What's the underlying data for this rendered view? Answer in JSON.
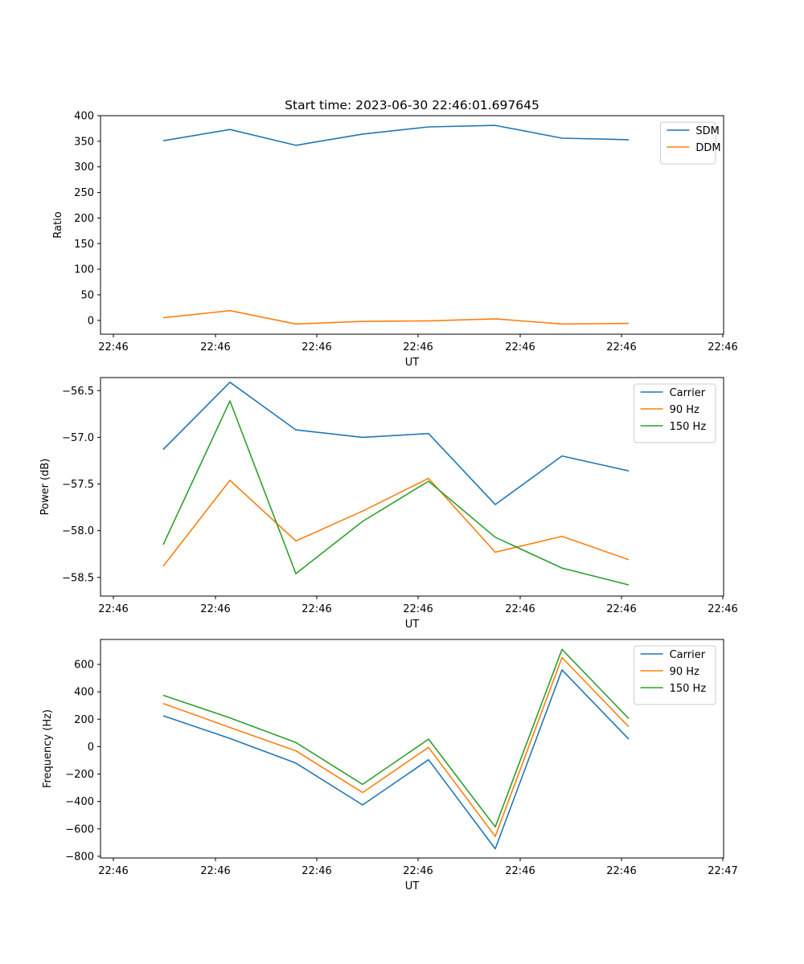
{
  "chart_data": [
    {
      "type": "line",
      "title": "Start time: 2023-06-30 22:46:01.697645",
      "xlabel": "UT",
      "ylabel": "Ratio",
      "x_ticks": [
        "22:46",
        "22:46",
        "22:46",
        "22:46",
        "22:46",
        "22:46",
        "22:46"
      ],
      "ylim": [
        -27,
        400
      ],
      "y_ticks": [
        0,
        50,
        100,
        150,
        200,
        250,
        300,
        350,
        400
      ],
      "legend": "top-right",
      "series": [
        {
          "name": "SDM",
          "color": "#1f77b4",
          "values": [
            351,
            373,
            342,
            364,
            378,
            381,
            356,
            353
          ]
        },
        {
          "name": "DDM",
          "color": "#ff7f0e",
          "values": [
            5,
            19,
            -7,
            -2,
            -1,
            3,
            -7,
            -6
          ]
        }
      ]
    },
    {
      "type": "line",
      "title": "",
      "xlabel": "UT",
      "ylabel": "Power (dB)",
      "x_ticks": [
        "22:46",
        "22:46",
        "22:46",
        "22:46",
        "22:46",
        "22:46",
        "22:46"
      ],
      "ylim": [
        -58.7,
        -56.36
      ],
      "y_ticks": [
        -56.5,
        -57.0,
        -57.5,
        -58.0,
        -58.5
      ],
      "y_tick_labels": [
        "−56.5",
        "−57.0",
        "−57.5",
        "−58.0",
        "−58.5"
      ],
      "legend": "top-right",
      "series": [
        {
          "name": "Carrier",
          "color": "#1f77b4",
          "values": [
            -57.13,
            -56.41,
            -56.92,
            -57.0,
            -56.96,
            -57.72,
            -57.2,
            -57.36
          ]
        },
        {
          "name": "90 Hz",
          "color": "#ff7f0e",
          "values": [
            -58.38,
            -57.46,
            -58.11,
            -57.79,
            -57.44,
            -58.23,
            -58.06,
            -58.31
          ]
        },
        {
          "name": "150 Hz",
          "color": "#2ca02c",
          "values": [
            -58.15,
            -56.61,
            -58.46,
            -57.9,
            -57.47,
            -58.07,
            -58.4,
            -58.58
          ]
        }
      ]
    },
    {
      "type": "line",
      "title": "",
      "xlabel": "UT",
      "ylabel": "Frequency (Hz)",
      "x_ticks": [
        "22:46",
        "22:46",
        "22:46",
        "22:46",
        "22:46",
        "22:46",
        "22:47"
      ],
      "ylim": [
        -812,
        782
      ],
      "y_ticks": [
        600,
        400,
        200,
        0,
        -200,
        -400,
        -600,
        -800
      ],
      "y_tick_labels": [
        "600",
        "400",
        "200",
        "0",
        "−200",
        "−400",
        "−600",
        "−800"
      ],
      "legend": "top-right",
      "series": [
        {
          "name": "Carrier",
          "color": "#1f77b4",
          "values": [
            225,
            60,
            -120,
            -425,
            -95,
            -745,
            560,
            55
          ]
        },
        {
          "name": "90 Hz",
          "color": "#ff7f0e",
          "values": [
            315,
            140,
            -30,
            -335,
            -5,
            -655,
            650,
            145
          ]
        },
        {
          "name": "150 Hz",
          "color": "#2ca02c",
          "values": [
            375,
            210,
            30,
            -275,
            55,
            -585,
            710,
            205
          ]
        }
      ]
    }
  ]
}
